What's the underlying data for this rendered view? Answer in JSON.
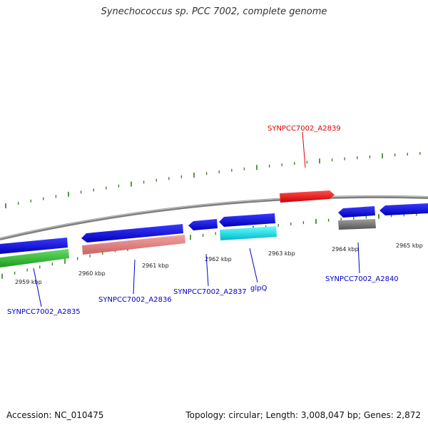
{
  "title": "Synechococcus sp. PCC 7002, complete genome",
  "footer": {
    "accession": "Accession: NC_010475",
    "topology": "Topology: circular; Length: 3,008,047 bp; Genes: 2,872"
  },
  "colors": {
    "backbone": "#8a8a8a",
    "ticks": "#2e7d1e",
    "label_default": "#0000cc",
    "label_highlight": "#dd0000"
  },
  "kbp_labels": [
    "2959 kbp",
    "2960 kbp",
    "2961 kbp",
    "2962 kbp",
    "2963 kbp",
    "2964 kbp",
    "2965 kbp"
  ],
  "gene_labels": [
    {
      "text": "SYNPCC7002_A2835",
      "color": "#0000cc"
    },
    {
      "text": "SYNPCC7002_A2836",
      "color": "#0000cc"
    },
    {
      "text": "SYNPCC7002_A2837",
      "color": "#0000cc"
    },
    {
      "text": "glpQ",
      "color": "#0000cc"
    },
    {
      "text": "SYNPCC7002_A2839",
      "color": "#dd0000"
    },
    {
      "text": "SYNPCC7002_A2840",
      "color": "#0000cc"
    }
  ]
}
